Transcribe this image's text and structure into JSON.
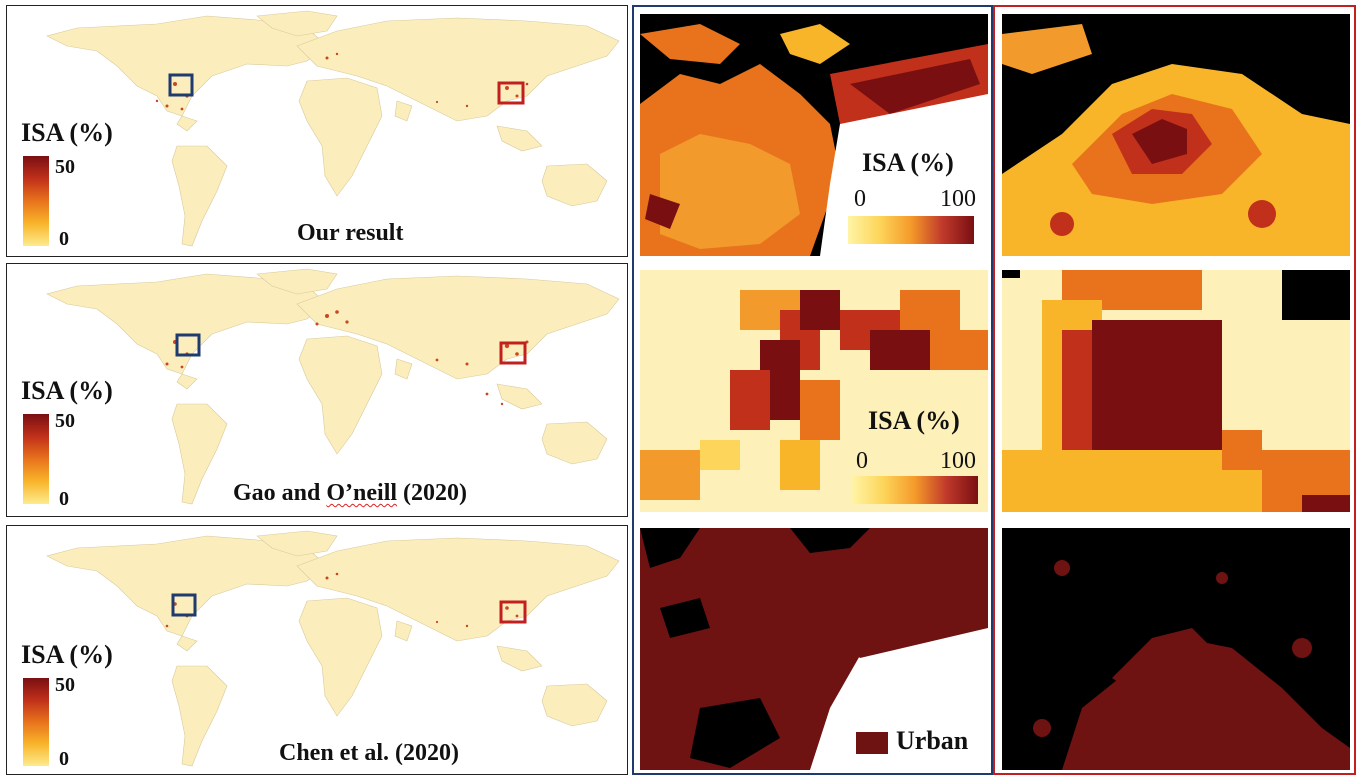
{
  "legend": {
    "title": "ISA (%)",
    "max": "50",
    "min": "0"
  },
  "maps": [
    {
      "caption": "Our result"
    },
    {
      "caption_prefix": "Gao and ",
      "caption_squiggle": "O’neill",
      "caption_suffix": " (2020)"
    },
    {
      "caption": "Chen et al. (2020)"
    }
  ],
  "zoom_legend": {
    "title": "ISA (%)",
    "min": "0",
    "max": "100"
  },
  "urban_legend": {
    "label": "Urban"
  },
  "colors": {
    "land": "#fbeebc",
    "ocean": "#ffffff",
    "isa_high": "#7a0f12",
    "isa_mid": "#e8731c",
    "isa_low": "#fdeb8e",
    "urban": "#6e1212",
    "box_us": "#1f3a6e",
    "box_china": "#c21f1f"
  }
}
